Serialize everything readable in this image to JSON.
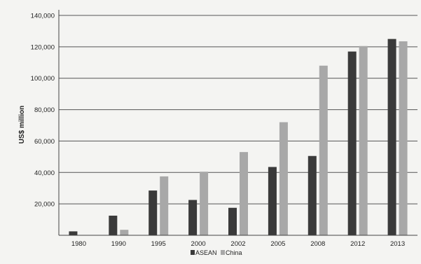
{
  "chart_data": {
    "type": "bar",
    "ylabel": "US$ million",
    "xlabel": "",
    "categories": [
      "1980",
      "1990",
      "1995",
      "2000",
      "2002",
      "2005",
      "2008",
      "2012",
      "2013"
    ],
    "series": [
      {
        "name": "ASEAN",
        "color": "#3a3a3a",
        "values": [
          2500,
          12500,
          28500,
          22500,
          17500,
          43500,
          50500,
          117000,
          125000
        ]
      },
      {
        "name": "China",
        "color": "#a8a8a8",
        "values": [
          0,
          3500,
          37500,
          40500,
          53000,
          72000,
          108000,
          120500,
          123500
        ]
      }
    ],
    "ylim": [
      0,
      140000
    ],
    "yticks": [
      20000,
      40000,
      60000,
      80000,
      100000,
      120000,
      140000
    ],
    "ytick_labels": [
      "20,000",
      "40,000",
      "60,000",
      "80,000",
      "100,000",
      "120,000",
      "140,000"
    ],
    "grid": true,
    "legend_placement": "bottom-center"
  }
}
